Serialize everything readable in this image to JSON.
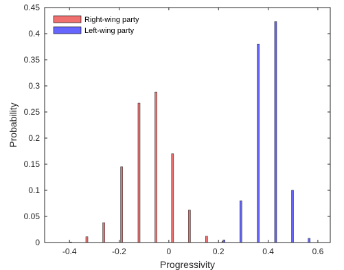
{
  "chart_data": {
    "type": "bar",
    "xlabel": "Progressivity",
    "ylabel": "Probability",
    "xlim": [
      -0.5,
      0.65
    ],
    "ylim": [
      0,
      0.45
    ],
    "xticks": [
      -0.4,
      -0.2,
      0,
      0.2,
      0.4,
      0.6
    ],
    "xtick_labels": [
      "-0.4",
      "-0.2",
      "0",
      "0.2",
      "0.4",
      "0.6"
    ],
    "yticks": [
      0,
      0.05,
      0.1,
      0.15,
      0.2,
      0.25,
      0.3,
      0.35,
      0.4,
      0.45
    ],
    "ytick_labels": [
      "0",
      "0.05",
      "0.1",
      "0.15",
      "0.2",
      "0.25",
      "0.3",
      "0.35",
      "0.4",
      "0.45"
    ],
    "grid": false,
    "legend_position": "top-left",
    "series": [
      {
        "name": "Right-wing party",
        "color": "#f07070",
        "x": [
          -0.395,
          -0.33,
          -0.262,
          -0.19,
          -0.12,
          -0.052,
          0.015,
          0.083,
          0.152,
          0.218
        ],
        "values": [
          0.001,
          0.011,
          0.038,
          0.145,
          0.267,
          0.288,
          0.17,
          0.062,
          0.012,
          0.002
        ]
      },
      {
        "name": "Left-wing party",
        "color": "#6666ff",
        "x": [
          0.222,
          0.29,
          0.36,
          0.43,
          0.498,
          0.565
        ],
        "values": [
          0.005,
          0.08,
          0.38,
          0.423,
          0.1,
          0.008
        ]
      }
    ]
  }
}
